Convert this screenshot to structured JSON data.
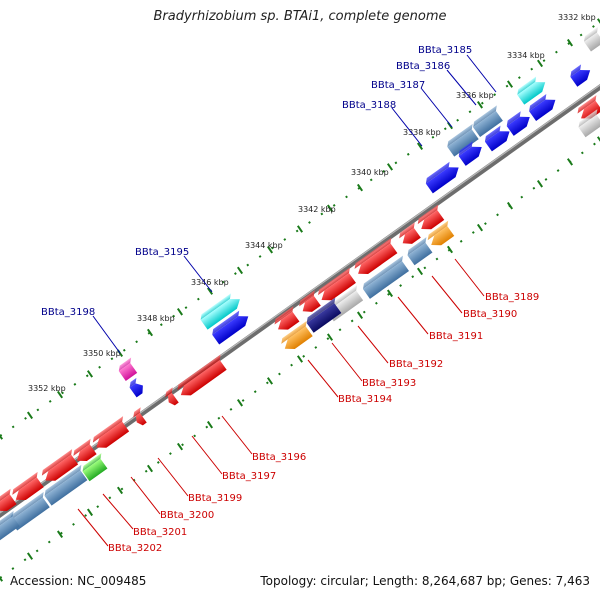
{
  "title": "Bradyrhizobium sp. BTAi1, complete genome",
  "accession": "Accession: NC_009485",
  "summary": "Topology: circular; Length: 8,264,687 bp; Genes: 7,463",
  "colors": {
    "forward_label": "#00008b",
    "reverse_label": "#cc0000",
    "backbone": "#8c8c8c",
    "tick": "#1a7a1a"
  },
  "kbp_ticks": [
    {
      "text": "3332 kbp",
      "pos": 0.05
    },
    {
      "text": "3334 kbp",
      "pos": 0.145
    },
    {
      "text": "3336 kbp",
      "pos": 0.24
    },
    {
      "text": "3338 kbp",
      "pos": 0.335
    },
    {
      "text": "3340 kbp",
      "pos": 0.43
    },
    {
      "text": "3342 kbp",
      "pos": 0.525
    },
    {
      "text": "3344 kbp",
      "pos": 0.62
    },
    {
      "text": "3346 kbp",
      "pos": 0.715
    },
    {
      "text": "3348 kbp",
      "pos": 0.81
    },
    {
      "text": "3350 kbp",
      "pos": 0.905
    },
    {
      "text": "3352 kbp",
      "pos": 1.0
    }
  ],
  "forward_labels": [
    "BBta_3185",
    "BBta_3186",
    "BBta_3187",
    "BBta_3188",
    "BBta_3195",
    "BBta_3198"
  ],
  "reverse_labels": [
    "BBta_3189",
    "BBta_3190",
    "BBta_3191",
    "BBta_3192",
    "BBta_3193",
    "BBta_3194",
    "BBta_3196",
    "BBta_3197",
    "BBta_3199",
    "BBta_3200",
    "BBta_3201",
    "BBta_3202"
  ]
}
